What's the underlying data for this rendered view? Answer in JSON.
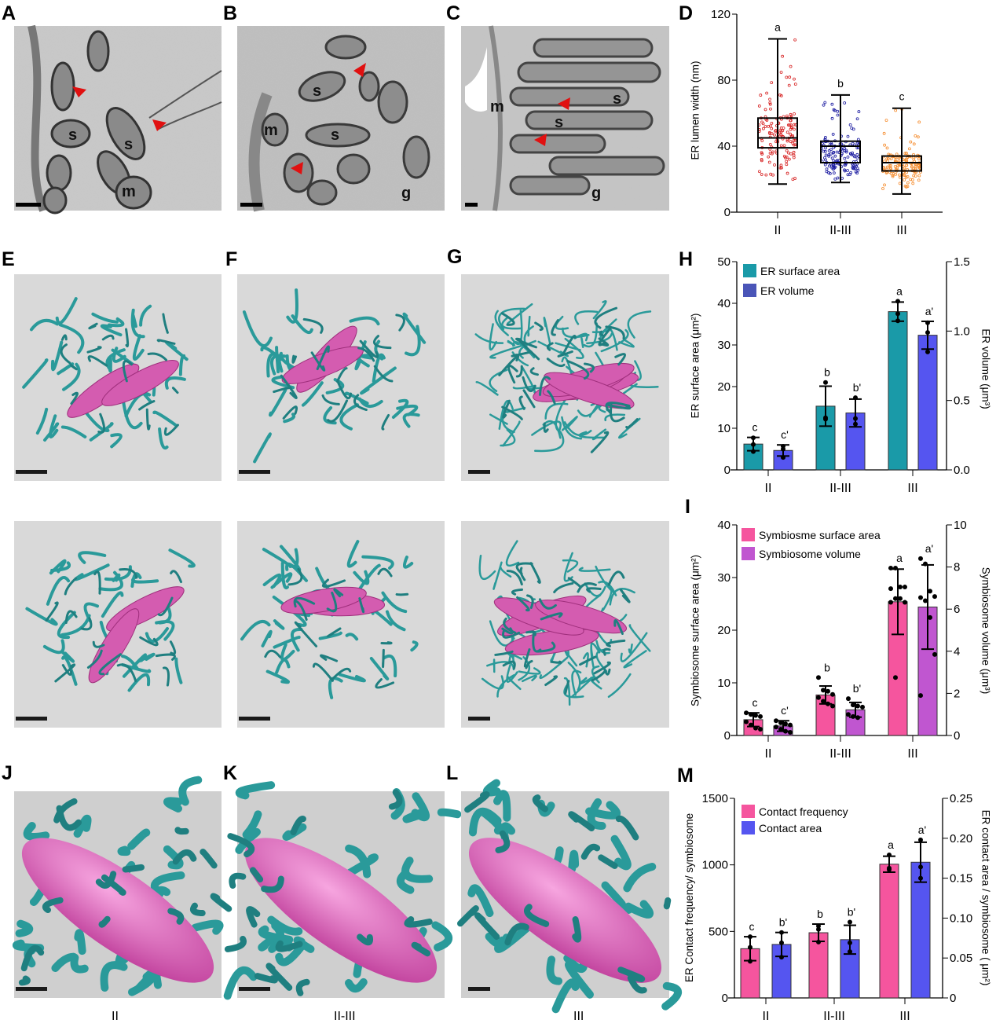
{
  "panel_labels": [
    "A",
    "B",
    "C",
    "D",
    "E",
    "F",
    "G",
    "H",
    "I",
    "J",
    "K",
    "L",
    "M"
  ],
  "micrograph_labels": {
    "A": [
      "s",
      "s",
      "m"
    ],
    "B": [
      "s",
      "s",
      "m",
      "g"
    ],
    "C": [
      "m",
      "s",
      "s",
      "g"
    ]
  },
  "bottom_stage_labels": [
    "II",
    "II-III",
    "III"
  ],
  "colors": {
    "teal": "#1a9aa8",
    "blue": "#5555f0",
    "pink": "#f5559e",
    "purple": "#c056d0",
    "red": "#d62020",
    "navy": "#1a1aa0",
    "orange": "#f58a2a",
    "er_render": "#2a9a9a",
    "symbiosome_render": "#d45cb0"
  },
  "chart_data": [
    {
      "id": "D",
      "type": "box",
      "title": "",
      "categories": [
        "II",
        "II-III",
        "III"
      ],
      "ylabel": "ER lumen width (nm)",
      "ylim": [
        0,
        120
      ],
      "yticks": [
        0,
        40,
        80,
        120
      ],
      "boxes": [
        {
          "min": 17,
          "q1": 39,
          "median": 45,
          "q3": 57,
          "max": 105,
          "letter": "a",
          "color": "#d62020"
        },
        {
          "min": 18,
          "q1": 30,
          "median": 40,
          "q3": 43,
          "max": 71,
          "letter": "b",
          "color": "#1a1aa0"
        },
        {
          "min": 11,
          "q1": 25,
          "median": 30,
          "q3": 34,
          "max": 63,
          "letter": "c",
          "color": "#f58a2a"
        }
      ]
    },
    {
      "id": "H",
      "type": "bar",
      "categories": [
        "II",
        "II-III",
        "III"
      ],
      "ylabel": "ER surface area (μm²)",
      "y2label": "ER volume (μm³)",
      "ylim": [
        0,
        50
      ],
      "yticks": [
        0,
        10,
        20,
        30,
        40,
        50
      ],
      "y2lim": [
        0,
        1.5
      ],
      "y2ticks": [
        "0.0",
        "0.5",
        "1.0",
        "1.5"
      ],
      "legend": "top-left",
      "series": [
        {
          "name": "ER surface area",
          "axis": "left",
          "color": "#1a9aa8",
          "values": [
            6.2,
            15.3,
            38.0
          ],
          "sd": [
            1.6,
            4.8,
            2.3
          ],
          "letters": [
            "c",
            "b",
            "a"
          ],
          "points": [
            [
              7.7,
              6.1,
              4.4
            ],
            [
              21.0,
              12.5,
              12.2
            ],
            [
              40.5,
              37.5,
              35.8
            ]
          ]
        },
        {
          "name": "ER volume",
          "axis": "right",
          "color": "#5555f0",
          "values": [
            0.14,
            0.41,
            0.97
          ],
          "sd": [
            0.04,
            0.1,
            0.1
          ],
          "letters": [
            "c'",
            "b'",
            "a'"
          ],
          "points": [
            [
              0.17,
              0.15,
              0.09
            ],
            [
              0.52,
              0.37,
              0.33
            ],
            [
              1.06,
              0.99,
              0.85
            ]
          ]
        }
      ]
    },
    {
      "id": "I",
      "type": "bar",
      "categories": [
        "II",
        "II-III",
        "III"
      ],
      "ylabel": "Symbiosome surface area (μm²)",
      "y2label": "Symbiosome volume (μm³)",
      "ylim": [
        0,
        40
      ],
      "yticks": [
        0,
        10,
        20,
        30,
        40
      ],
      "y2lim": [
        0,
        10
      ],
      "y2ticks": [
        "0",
        "2",
        "4",
        "6",
        "8",
        "10"
      ],
      "legend": "top-left",
      "series": [
        {
          "name": "Symbiosme surface area",
          "axis": "left",
          "color": "#f5559e",
          "values": [
            3.0,
            7.7,
            25.4
          ],
          "sd": [
            1.3,
            1.7,
            6.2
          ],
          "letters": [
            "c",
            "b",
            "a"
          ],
          "points": [
            [
              4.3,
              4.0,
              3.8,
              3.6,
              2.6,
              2.0,
              1.4,
              1.2
            ],
            [
              11.0,
              8.6,
              8.4,
              7.8,
              7.2,
              6.5,
              6.0,
              5.6
            ],
            [
              31.8,
              31.8,
              28.2,
              28.2,
              27.9,
              26.0,
              26.0,
              25.3,
              25.3,
              11.0
            ]
          ]
        },
        {
          "name": "Symbiosome volume",
          "axis": "right",
          "color": "#c056d0",
          "values": [
            0.45,
            1.22,
            6.1
          ],
          "sd": [
            0.25,
            0.35,
            2.0
          ],
          "letters": [
            "c'",
            "b'",
            "a'"
          ],
          "points": [
            [
              0.7,
              0.6,
              0.55,
              0.5,
              0.4,
              0.3,
              0.2,
              0.15
            ],
            [
              1.75,
              1.45,
              1.4,
              1.35,
              1.0,
              0.9,
              0.85
            ],
            [
              8.4,
              8.15,
              6.85,
              6.6,
              6.55,
              6.4,
              5.6,
              3.85,
              1.9
            ]
          ]
        }
      ]
    },
    {
      "id": "M",
      "type": "bar",
      "categories": [
        "II",
        "II-III",
        "III"
      ],
      "ylabel": "ER Contact frequency/ symbiosome",
      "y2label": "ER contact area / symbiosome ( μm²)",
      "ylim": [
        0,
        1500
      ],
      "yticks": [
        0,
        500,
        1000,
        1500
      ],
      "y2lim": [
        0,
        0.25
      ],
      "y2ticks": [
        "0",
        "0.05",
        "0.10",
        "0.15",
        "0.20",
        "0.25"
      ],
      "legend": "top-left",
      "series": [
        {
          "name": "Contact frequency",
          "axis": "left",
          "color": "#f5559e",
          "values": [
            370,
            490,
            1005
          ],
          "sd": [
            90,
            65,
            60
          ],
          "letters": [
            "c",
            "b",
            "a"
          ],
          "points": [
            [
              460,
              380,
              275
            ],
            [
              540,
              515,
              420
            ],
            [
              1075,
              975,
              965
            ]
          ]
        },
        {
          "name": "Contact area",
          "axis": "right",
          "color": "#5555f0",
          "values": [
            0.067,
            0.073,
            0.17
          ],
          "sd": [
            0.015,
            0.018,
            0.025
          ],
          "letters": [
            "b'",
            "b'",
            "a'"
          ],
          "points": [
            [
              0.082,
              0.069,
              0.051
            ],
            [
              0.095,
              0.069,
              0.058
            ],
            [
              0.198,
              0.164,
              0.15
            ]
          ]
        }
      ]
    }
  ]
}
